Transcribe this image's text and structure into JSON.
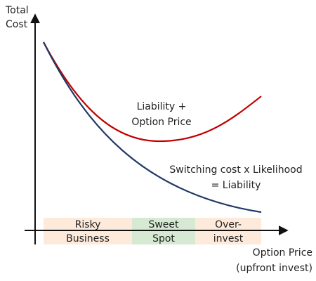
{
  "y_axis_label": [
    "Total",
    "Cost"
  ],
  "x_axis_label": [
    "Option Price",
    "(upfront invest)"
  ],
  "curves": [
    {
      "label": [
        "Liability +",
        "Option Price"
      ],
      "color": "#c00000"
    },
    {
      "label": [
        "Switching cost x Likelihood",
        "= Liability"
      ],
      "color": "#1f3864"
    }
  ],
  "zones": [
    {
      "label": [
        "Risky",
        "Business"
      ],
      "color": "#fdeadb"
    },
    {
      "label": [
        "Sweet",
        "Spot"
      ],
      "color": "#d6e9d2"
    },
    {
      "label": [
        "Over-",
        "invest"
      ],
      "color": "#fdeadb"
    }
  ]
}
